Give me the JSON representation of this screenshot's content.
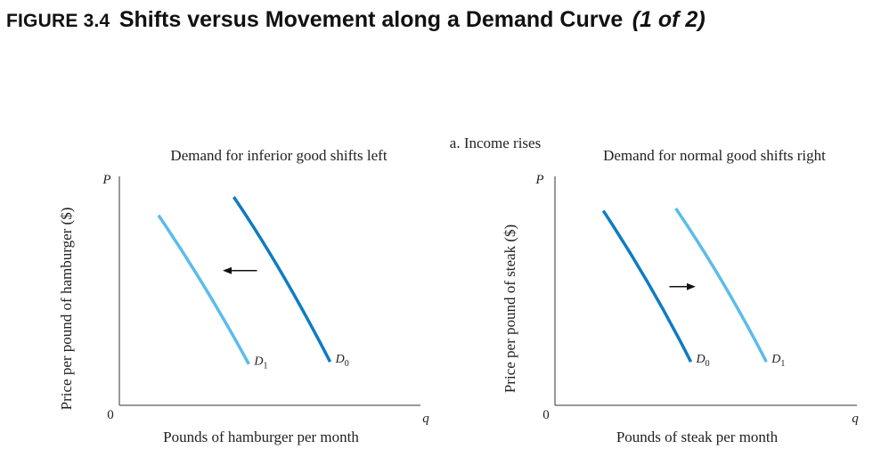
{
  "figure": {
    "label": "FIGURE 3.4",
    "title": "Shifts versus Movement along a Demand Curve",
    "part": "(1 of 2)"
  },
  "panel_heading": "a. Income rises",
  "colors": {
    "light": "#5BBCEB",
    "dark": "#0E7CC4",
    "axis": "#333333",
    "arrow": "#111111"
  },
  "chart_data": [
    {
      "type": "line",
      "title": "Demand for inferior good shifts left",
      "xlabel": "Pounds of hamburger per month",
      "ylabel": "Price per pound of hamburger ($)",
      "x_axis_symbol": "q",
      "y_axis_symbol": "P",
      "origin_label": "0",
      "xlim": [
        0,
        10
      ],
      "ylim": [
        0,
        10
      ],
      "shift": "left",
      "series": [
        {
          "name": "D0",
          "label_main": "D",
          "label_sub": "0",
          "color": "dark",
          "points": [
            [
              3.8,
              9.1
            ],
            [
              5.4,
              6.0
            ],
            [
              7.0,
              1.9
            ]
          ]
        },
        {
          "name": "D1",
          "label_main": "D",
          "label_sub": "1",
          "color": "light",
          "points": [
            [
              1.3,
              8.3
            ],
            [
              2.9,
              5.2
            ],
            [
              4.3,
              1.8
            ]
          ]
        }
      ]
    },
    {
      "type": "line",
      "title": "Demand for normal good shifts right",
      "xlabel": "Pounds of steak per month",
      "ylabel": "Price per pound of steak ($)",
      "x_axis_symbol": "q",
      "y_axis_symbol": "P",
      "origin_label": "0",
      "xlim": [
        0,
        10
      ],
      "ylim": [
        0,
        10
      ],
      "shift": "right",
      "series": [
        {
          "name": "D0",
          "label_main": "D",
          "label_sub": "0",
          "color": "dark",
          "points": [
            [
              1.6,
              8.5
            ],
            [
              3.2,
              5.3
            ],
            [
              4.5,
              1.9
            ]
          ]
        },
        {
          "name": "D1",
          "label_main": "D",
          "label_sub": "1",
          "color": "light",
          "points": [
            [
              4.0,
              8.6
            ],
            [
              5.6,
              5.5
            ],
            [
              7.0,
              1.9
            ]
          ]
        }
      ]
    }
  ]
}
